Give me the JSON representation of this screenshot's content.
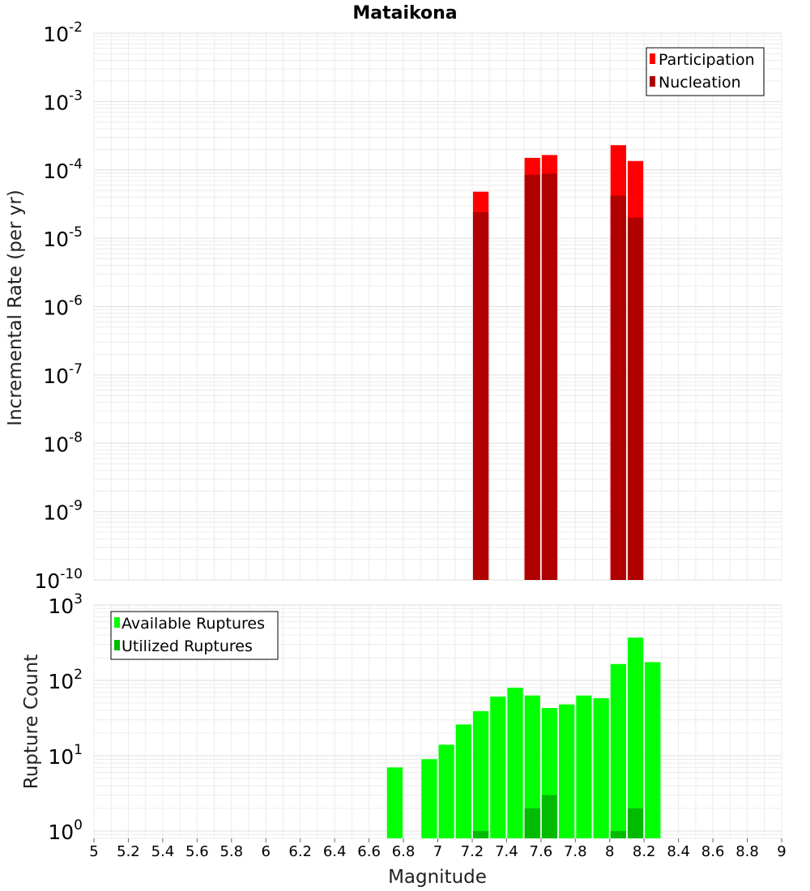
{
  "chart_data": [
    {
      "type": "bar",
      "panel": "top",
      "title": "Mataikona",
      "xlabel": "Magnitude",
      "ylabel": "Incremental Rate (per yr)",
      "yscale": "log",
      "ylim": [
        1e-10,
        0.01
      ],
      "xlim": [
        5,
        9
      ],
      "y_tick_mantissa": "10",
      "y_tick_exponents": [
        "-10",
        "-9",
        "-8",
        "-7",
        "-6",
        "-5",
        "-4",
        "-3",
        "-2"
      ],
      "legend_position": "top-right",
      "series": [
        {
          "name": "Participation",
          "color": "#ff0000",
          "x": [
            7.25,
            7.55,
            7.65,
            8.05,
            8.15
          ],
          "values": [
            4.8e-05,
            0.00015,
            0.000165,
            0.00023,
            0.000135
          ]
        },
        {
          "name": "Nucleation",
          "color": "#b00000",
          "x": [
            7.25,
            7.55,
            7.65,
            8.05,
            8.15
          ],
          "values": [
            2.4e-05,
            8.5e-05,
            8.8e-05,
            4.2e-05,
            2e-05
          ]
        }
      ]
    },
    {
      "type": "bar",
      "panel": "bottom",
      "xlabel": "Magnitude",
      "ylabel": "Rupture Count",
      "yscale": "log",
      "ylim": [
        0.8,
        1000
      ],
      "xlim": [
        5,
        9
      ],
      "x_ticks": [
        "5",
        "5.2",
        "5.4",
        "5.6",
        "5.8",
        "6",
        "6.2",
        "6.4",
        "6.6",
        "6.8",
        "7",
        "7.2",
        "7.4",
        "7.6",
        "7.8",
        "8",
        "8.2",
        "8.4",
        "8.6",
        "8.8",
        "9"
      ],
      "y_tick_mantissa": "10",
      "y_tick_exponents": [
        "0",
        "1",
        "2",
        "3"
      ],
      "legend_position": "top-left",
      "series": [
        {
          "name": "Available Ruptures",
          "color": "#00ff00",
          "x": [
            6.75,
            6.95,
            7.05,
            7.15,
            7.25,
            7.35,
            7.45,
            7.55,
            7.65,
            7.75,
            7.85,
            7.95,
            8.05,
            8.15,
            8.25
          ],
          "values": [
            7,
            9,
            14,
            26,
            39,
            61,
            80,
            63,
            43,
            48,
            63,
            58,
            165,
            370,
            175
          ]
        },
        {
          "name": "Utilized Ruptures",
          "color": "#00bb00",
          "x": [
            7.25,
            7.55,
            7.65,
            8.05,
            8.15
          ],
          "values": [
            1,
            2,
            3,
            1,
            2
          ]
        }
      ]
    }
  ]
}
